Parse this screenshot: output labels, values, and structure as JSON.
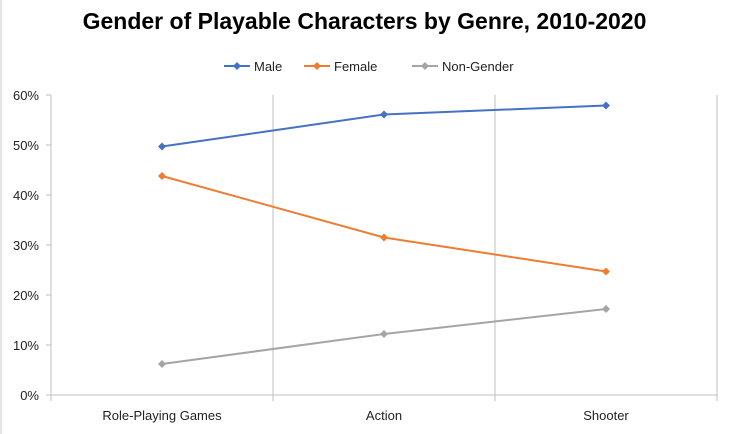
{
  "chart_data": {
    "type": "line",
    "title": "Gender of Playable Characters by Genre, 2010-2020",
    "categories": [
      "Role-Playing Games",
      "Action",
      "Shooter"
    ],
    "series": [
      {
        "name": "Male",
        "color": "#4472C4",
        "values": [
          49.7,
          56.1,
          57.9
        ]
      },
      {
        "name": "Female",
        "color": "#ED7D31",
        "values": [
          43.8,
          31.5,
          24.7
        ]
      },
      {
        "name": "Non-Gender",
        "color": "#A5A5A5",
        "values": [
          6.2,
          12.2,
          17.2
        ]
      }
    ],
    "ylim": [
      0,
      60
    ],
    "yticks": [
      "0%",
      "10%",
      "20%",
      "30%",
      "40%",
      "50%",
      "60%"
    ],
    "xlabel": "",
    "ylabel": "",
    "grid": "vertical category separators",
    "legend": "top-center",
    "marker": "diamond"
  }
}
